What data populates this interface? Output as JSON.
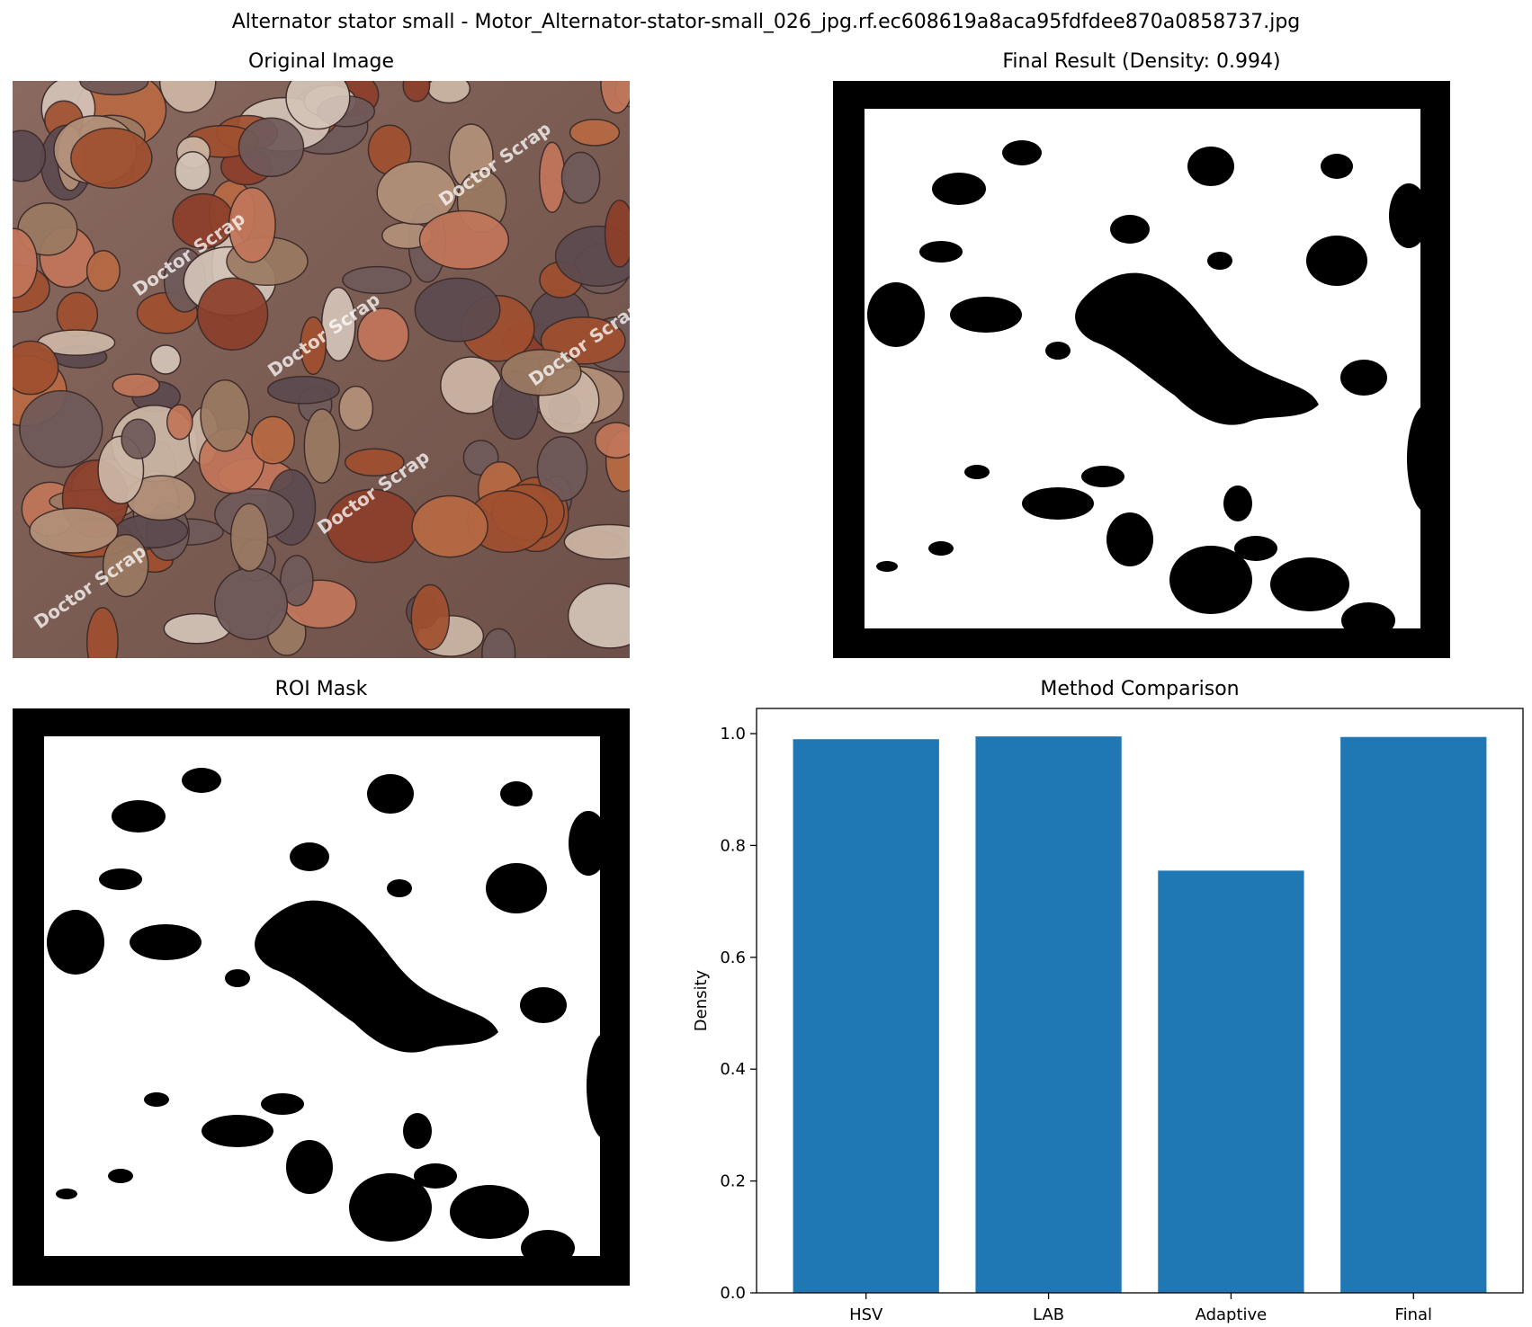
{
  "figure": {
    "suptitle": "Alternator stator small - Motor_Alternator-stator-small_026_jpg.rf.ec608619a8aca95fdfdee870a0858737.jpg"
  },
  "panels": {
    "original": {
      "title": "Original Image",
      "watermark": "Doctor Scrap"
    },
    "final": {
      "title": "Final Result (Density: 0.994)"
    },
    "roi": {
      "title": "ROI Mask"
    },
    "comparison": {
      "title": "Method Comparison"
    }
  },
  "colors": {
    "bar": "#1f77b4",
    "mask_foreground": "#ffffff",
    "mask_background": "#000000"
  },
  "chart_data": {
    "type": "bar",
    "title": "Method Comparison",
    "xlabel": "",
    "ylabel": "Density",
    "categories": [
      "HSV",
      "LAB",
      "Adaptive",
      "Final"
    ],
    "values": [
      0.99,
      0.995,
      0.755,
      0.994
    ],
    "ylim": [
      0,
      1.045
    ],
    "yticks": [
      0.0,
      0.2,
      0.4,
      0.6,
      0.8,
      1.0
    ],
    "grid": false
  }
}
